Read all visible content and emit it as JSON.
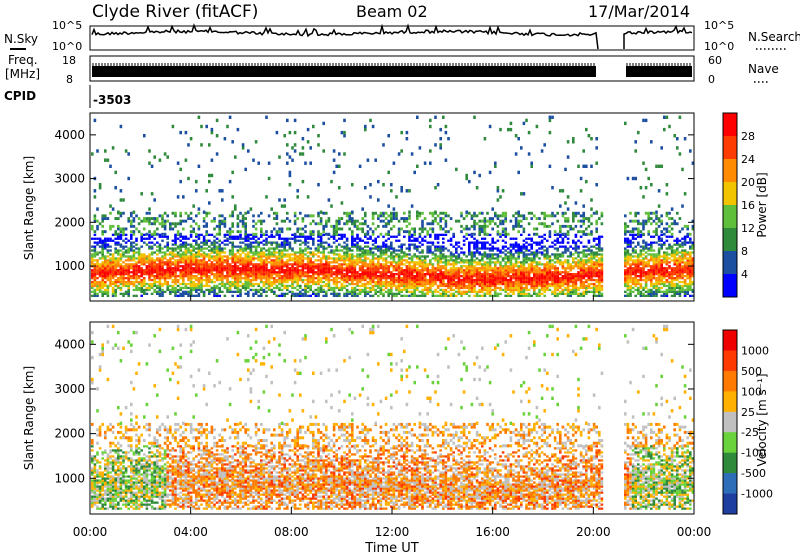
{
  "header": {
    "station": "Clyde River (fitACF)",
    "beam": "Beam 02",
    "date": "17/Mar/2014"
  },
  "strips": {
    "nsky_label": "N.Sky",
    "nsearch_label": "N.Search",
    "nsky_ticks": [
      "10^5",
      "10^0"
    ],
    "nsearch_ticks": [
      "10^5",
      "10^0"
    ],
    "freq_label": "Freq.",
    "freq_unit": "[MHz]",
    "freq_ticks": [
      "18",
      "8"
    ],
    "nave_label": "Nave",
    "nave_ticks": [
      "60",
      "0"
    ],
    "cpid_label": "CPID",
    "cpid_value": "-3503"
  },
  "chart_data": [
    {
      "type": "heatmap",
      "panel": "power",
      "ylabel": "Slant Range [km]",
      "yticks": [
        1000,
        2000,
        3000,
        4000
      ],
      "ylim": [
        200,
        4500
      ],
      "xlim_hours": [
        0,
        24
      ],
      "colorbar_label": "Power [dB]",
      "colorbar_ticks": [
        "28",
        "24",
        "20",
        "16",
        "12",
        "8",
        "4"
      ],
      "colors": [
        "#0000ff",
        "#1c4fa0",
        "#2f8a3c",
        "#5fbf3a",
        "#f2c400",
        "#ff8c00",
        "#ff3c00",
        "#ff0000"
      ],
      "data_gap_hours": [
        20.3,
        21.2
      ]
    },
    {
      "type": "heatmap",
      "panel": "velocity",
      "ylabel": "Slant Range [km]",
      "yticks": [
        1000,
        2000,
        3000,
        4000
      ],
      "ylim": [
        200,
        4500
      ],
      "xlim_hours": [
        0,
        24
      ],
      "xlabel": "Time UT",
      "xticks": [
        "00:00",
        "04:00",
        "08:00",
        "12:00",
        "16:00",
        "20:00",
        "00:00"
      ],
      "colorbar_label": "Velocity [m s⁻¹]",
      "colorbar_ticks": [
        "1000",
        "500",
        "100",
        "25",
        "-25",
        "-100",
        "-500",
        "-1000"
      ],
      "colors": [
        "#1f3fa0",
        "#2e6eb8",
        "#2f8a3c",
        "#6ad23a",
        "#c0c0c0",
        "#ffb000",
        "#ff7a00",
        "#ff3a00",
        "#ee0000"
      ],
      "data_gap_hours": [
        20.3,
        21.2
      ]
    }
  ]
}
